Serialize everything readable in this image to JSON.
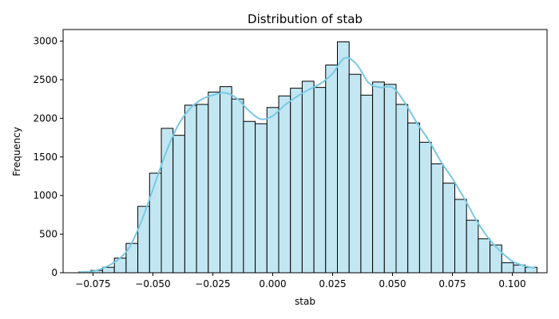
{
  "chart_data": {
    "type": "bar",
    "title": "Distribution of stab",
    "xlabel": "stab",
    "ylabel": "Frequency",
    "xlim": [
      -0.0875,
      0.1145
    ],
    "ylim": [
      0,
      3150
    ],
    "grid": false,
    "legend": "none",
    "bar_color": "#c2e7f3",
    "edge_color": "#000000",
    "kde_color": "#77c9e3",
    "x_ticks": [
      -0.075,
      -0.05,
      -0.025,
      0.0,
      0.025,
      0.05,
      0.075,
      0.1
    ],
    "x_tick_labels": [
      "−0.075",
      "−0.050",
      "−0.025",
      "0.000",
      "0.025",
      "0.050",
      "0.075",
      "0.100"
    ],
    "y_ticks": [
      0,
      500,
      1000,
      1500,
      2000,
      2500,
      3000
    ],
    "y_tick_labels": [
      "0",
      "500",
      "1000",
      "1500",
      "2000",
      "2500",
      "3000"
    ],
    "bin_start": -0.0808,
    "bin_width": 0.0049,
    "values": [
      15,
      30,
      70,
      190,
      380,
      860,
      1290,
      1870,
      1780,
      2170,
      2180,
      2340,
      2410,
      2250,
      1960,
      1930,
      2140,
      2290,
      2390,
      2480,
      2400,
      2690,
      2990,
      2570,
      2300,
      2470,
      2440,
      2180,
      1940,
      1690,
      1410,
      1160,
      950,
      680,
      440,
      360,
      130,
      100,
      70
    ],
    "kde": {
      "x": [
        -0.0808,
        -0.075,
        -0.07,
        -0.065,
        -0.06,
        -0.055,
        -0.05,
        -0.045,
        -0.04,
        -0.035,
        -0.03,
        -0.025,
        -0.02,
        -0.015,
        -0.01,
        -0.005,
        0.0,
        0.005,
        0.01,
        0.015,
        0.02,
        0.025,
        0.03,
        0.035,
        0.04,
        0.045,
        0.05,
        0.055,
        0.06,
        0.065,
        0.07,
        0.075,
        0.08,
        0.085,
        0.09,
        0.095,
        0.1,
        0.105,
        0.1095
      ],
      "y": [
        10,
        20,
        70,
        160,
        320,
        650,
        1080,
        1520,
        1880,
        2110,
        2240,
        2300,
        2330,
        2260,
        2100,
        1990,
        2030,
        2170,
        2280,
        2370,
        2450,
        2580,
        2780,
        2700,
        2460,
        2400,
        2400,
        2210,
        1950,
        1720,
        1450,
        1220,
        960,
        680,
        450,
        280,
        150,
        90,
        60
      ]
    }
  }
}
